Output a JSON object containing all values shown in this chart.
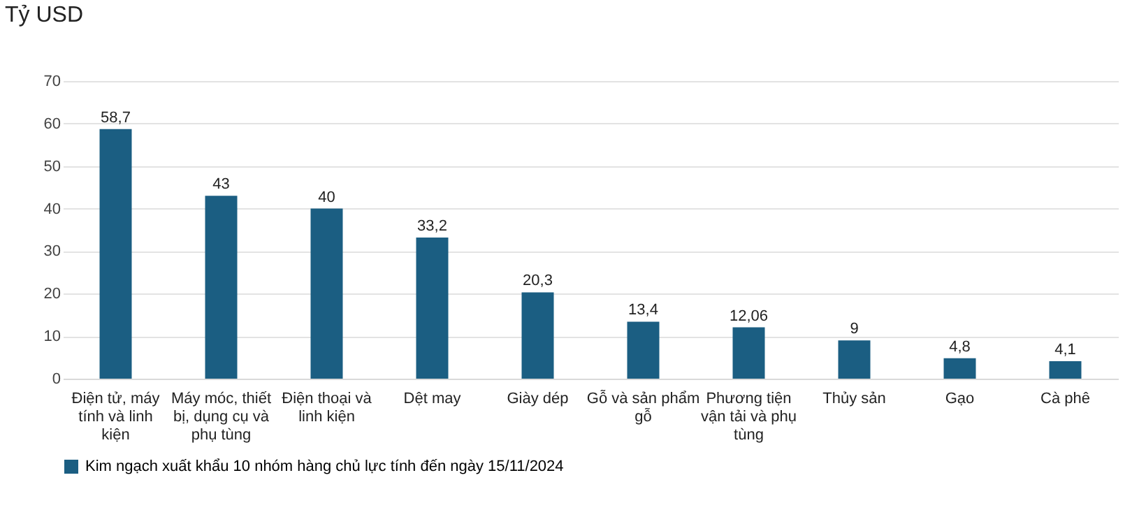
{
  "chart_data": {
    "type": "bar",
    "ylabel": "Tỷ USD",
    "categories": [
      "Điện tử, máy tính và linh kiện",
      "Máy móc, thiết bị, dụng cụ và phụ tùng",
      "Điện thoại và linh kiện",
      "Dệt may",
      "Giày dép",
      "Gỗ và sản phẩm gỗ",
      "Phương tiện vận tải và phụ tùng",
      "Thủy sản",
      "Gạo",
      "Cà phê"
    ],
    "series": [
      {
        "name": "Kim ngạch xuất khẩu 10 nhóm hàng chủ lực tính đến ngày 15/11/2024",
        "color": "#1b5e82",
        "values": [
          58.7,
          43,
          40,
          33.2,
          20.3,
          13.4,
          12.06,
          9,
          4.8,
          4.1
        ],
        "value_labels": [
          "58,7",
          "43",
          "40",
          "33,2",
          "20,3",
          "13,4",
          "12,06",
          "9",
          "4,8",
          "4,1"
        ]
      }
    ],
    "ylim": [
      0,
      70
    ],
    "yticks": [
      0,
      10,
      20,
      30,
      40,
      50,
      60,
      70
    ],
    "grid": "y",
    "legend": "bottom"
  }
}
